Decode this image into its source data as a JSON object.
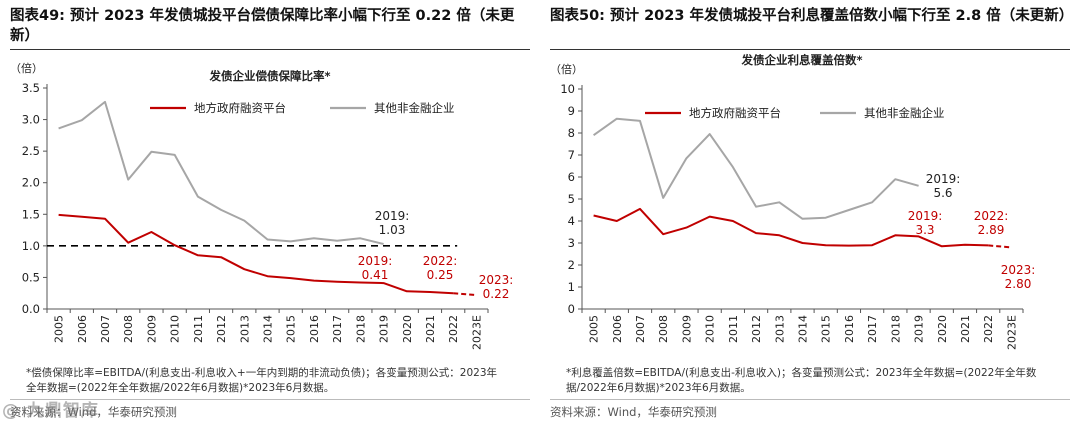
{
  "watermark": "@ 九鼎智库",
  "colors": {
    "red": "#C00000",
    "gray": "#A6A6A6",
    "axis": "#555555",
    "text": "#222222"
  },
  "panels": [
    {
      "fig_title": "图表49:  预计 2023 年发债城投平台偿债保障比率小幅下行至 0.22 倍（未更新）",
      "note": "*偿债保障比率=EBITDA/(利息支出-利息收入+一年内到期的非流动负债)；各变量预测公式：2023年全年数据=(2022年全年数据/2022年6月数据)*2023年6月数据。",
      "source": "资料来源：Wind，华泰研究预测",
      "chart_data": {
        "type": "line",
        "title": "发债企业偿债保障比率*",
        "ylabel": "（倍）",
        "ylim": [
          0,
          3.5
        ],
        "yticks": [
          "0.0",
          "0.5",
          "1.0",
          "1.5",
          "2.0",
          "2.5",
          "3.0",
          "3.5"
        ],
        "ytick_values": [
          0,
          0.5,
          1,
          1.5,
          2,
          2.5,
          3,
          3.5
        ],
        "categories": [
          "2005",
          "2006",
          "2007",
          "2008",
          "2009",
          "2010",
          "2011",
          "2012",
          "2013",
          "2014",
          "2015",
          "2016",
          "2017",
          "2018",
          "2019",
          "2020",
          "2021",
          "2022",
          "2023E"
        ],
        "reference_line": 1.0,
        "series": [
          {
            "name": "地方政府融资平台",
            "color": "#C00000",
            "values": [
              1.49,
              1.46,
              1.43,
              1.05,
              1.22,
              1.01,
              0.85,
              0.82,
              0.63,
              0.52,
              0.49,
              0.45,
              0.43,
              0.42,
              0.41,
              0.28,
              0.27,
              0.25,
              null
            ],
            "forecast": [
              0.25,
              0.22
            ]
          },
          {
            "name": "其他非金融企业",
            "color": "#A6A6A6",
            "values": [
              2.86,
              2.99,
              3.28,
              2.05,
              2.49,
              2.44,
              1.78,
              1.57,
              1.4,
              1.1,
              1.07,
              1.12,
              1.08,
              1.12,
              1.03,
              null,
              null,
              null,
              null
            ]
          }
        ],
        "annotations": [
          {
            "id": "a1",
            "text_lines": [
              "2019:",
              "1.03"
            ],
            "color": "#222222"
          },
          {
            "id": "a2",
            "text_lines": [
              "2019:",
              "0.41"
            ],
            "color": "#C00000"
          },
          {
            "id": "a3",
            "text_lines": [
              "2022:",
              "0.25"
            ],
            "color": "#C00000"
          },
          {
            "id": "a4",
            "text_lines": [
              "2023:",
              "0.22"
            ],
            "color": "#C00000"
          }
        ]
      }
    },
    {
      "fig_title": "图表50:  预计 2023 年发债城投平台利息覆盖倍数小幅下行至 2.8 倍（未更新）",
      "note": "*利息覆盖倍数=EBITDA/(利息支出-利息收入)；各变量预测公式：2023年全年数据=(2022年全年数据/2022年6月数据)*2023年6月数据。",
      "source": "资料来源：Wind，华泰研究预测",
      "chart_data": {
        "type": "line",
        "title": "发债企业利息覆盖倍数*",
        "ylabel": "（倍）",
        "ylim": [
          0,
          10
        ],
        "yticks": [
          "0",
          "1",
          "2",
          "3",
          "4",
          "5",
          "6",
          "7",
          "8",
          "9",
          "10"
        ],
        "ytick_values": [
          0,
          1,
          2,
          3,
          4,
          5,
          6,
          7,
          8,
          9,
          10
        ],
        "categories": [
          "2005",
          "2006",
          "2007",
          "2008",
          "2009",
          "2010",
          "2011",
          "2012",
          "2013",
          "2014",
          "2015",
          "2016",
          "2017",
          "2018",
          "2019",
          "2020",
          "2021",
          "2022",
          "2023E"
        ],
        "reference_line": null,
        "series": [
          {
            "name": "地方政府融资平台",
            "color": "#C00000",
            "values": [
              4.25,
              4.0,
              4.55,
              3.4,
              3.7,
              4.2,
              4.0,
              3.45,
              3.35,
              3.0,
              2.9,
              2.88,
              2.9,
              3.35,
              3.3,
              2.85,
              2.92,
              2.89,
              null
            ],
            "forecast": [
              2.89,
              2.8
            ]
          },
          {
            "name": "其他非金融企业",
            "color": "#A6A6A6",
            "values": [
              7.9,
              8.65,
              8.55,
              5.05,
              6.85,
              7.95,
              6.45,
              4.65,
              4.85,
              4.1,
              4.15,
              4.5,
              4.85,
              5.9,
              5.6,
              null,
              null,
              null,
              null
            ]
          }
        ],
        "annotations": [
          {
            "id": "b1",
            "text_lines": [
              "2019:",
              "5.6"
            ],
            "color": "#222222"
          },
          {
            "id": "b2",
            "text_lines": [
              "2019:",
              "3.3"
            ],
            "color": "#C00000"
          },
          {
            "id": "b3",
            "text_lines": [
              "2022:",
              "2.89"
            ],
            "color": "#C00000"
          },
          {
            "id": "b4",
            "text_lines": [
              "2023:",
              "2.80"
            ],
            "color": "#C00000"
          }
        ]
      }
    }
  ]
}
